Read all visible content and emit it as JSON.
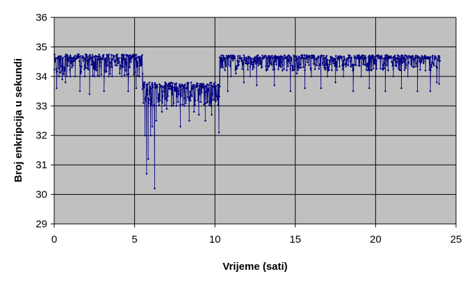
{
  "chart_data": {
    "type": "scatter",
    "title": "",
    "xlabel": "Vrijeme (sati)",
    "ylabel": "Broj enkripcija u sekundi",
    "xlim": [
      0,
      25
    ],
    "ylim": [
      29,
      36
    ],
    "x_ticks": [
      0,
      5,
      10,
      15,
      20,
      25
    ],
    "y_ticks": [
      29,
      30,
      31,
      32,
      33,
      34,
      35,
      36
    ],
    "x_tick_labels": [
      "0",
      "5",
      "10",
      "15",
      "20",
      "25"
    ],
    "y_tick_labels": [
      "29",
      "30",
      "31",
      "32",
      "33",
      "34",
      "35",
      "36"
    ],
    "grid": true,
    "legend": "none",
    "colors": {
      "plot_background": "#c0c0c0",
      "series": "#000080",
      "grid": "#000000"
    },
    "series": [
      {
        "style": "line-with-markers",
        "segments": [
          {
            "x_range": [
              0,
              5.5
            ],
            "typical_range": [
              34.0,
              34.75
            ],
            "baseline": 34.45,
            "dips": [
              [
                0.15,
                33.6
              ],
              [
                0.3,
                34.0
              ],
              [
                0.5,
                33.9
              ],
              [
                0.7,
                33.8
              ],
              [
                1.0,
                34.0
              ],
              [
                1.3,
                34.0
              ],
              [
                1.6,
                33.5
              ],
              [
                1.9,
                34.0
              ],
              [
                2.2,
                33.4
              ],
              [
                2.5,
                34.0
              ],
              [
                2.8,
                34.0
              ],
              [
                3.1,
                33.5
              ],
              [
                3.4,
                34.0
              ],
              [
                3.6,
                34.0
              ],
              [
                4.2,
                34.0
              ],
              [
                4.6,
                33.5
              ],
              [
                5.1,
                33.6
              ],
              [
                5.3,
                34.0
              ]
            ]
          },
          {
            "x_range": [
              5.5,
              10.3
            ],
            "typical_range": [
              33.0,
              33.8
            ],
            "baseline": 33.35,
            "dips": [
              [
                5.55,
                33.1
              ],
              [
                5.65,
                32.0
              ],
              [
                5.75,
                30.7
              ],
              [
                5.85,
                31.2
              ],
              [
                6.0,
                32.0
              ],
              [
                6.1,
                32.3
              ],
              [
                6.25,
                30.2
              ],
              [
                6.35,
                32.5
              ],
              [
                6.7,
                32.8
              ],
              [
                7.0,
                32.9
              ],
              [
                7.3,
                33.0
              ],
              [
                7.6,
                33.0
              ],
              [
                7.85,
                32.3
              ],
              [
                8.1,
                33.0
              ],
              [
                8.4,
                32.5
              ],
              [
                8.7,
                32.8
              ],
              [
                9.0,
                32.7
              ],
              [
                9.4,
                32.5
              ],
              [
                9.8,
                32.7
              ],
              [
                10.25,
                32.1
              ]
            ]
          },
          {
            "x_range": [
              10.3,
              24.0
            ],
            "typical_range": [
              34.2,
              34.72
            ],
            "baseline": 34.6,
            "dips": [
              [
                10.5,
                34.3
              ],
              [
                10.8,
                33.5
              ],
              [
                11.0,
                34.0
              ],
              [
                11.3,
                34.1
              ],
              [
                11.8,
                33.8
              ],
              [
                12.2,
                34.0
              ],
              [
                12.6,
                33.7
              ],
              [
                12.9,
                34.3
              ],
              [
                13.2,
                34.2
              ],
              [
                13.7,
                33.7
              ],
              [
                14.2,
                34.2
              ],
              [
                14.7,
                33.5
              ],
              [
                15.1,
                34.1
              ],
              [
                15.6,
                33.6
              ],
              [
                16.0,
                34.0
              ],
              [
                16.6,
                33.6
              ],
              [
                17.0,
                34.0
              ],
              [
                17.5,
                33.8
              ],
              [
                18.0,
                34.0
              ],
              [
                18.6,
                33.5
              ],
              [
                19.1,
                34.0
              ],
              [
                19.6,
                33.6
              ],
              [
                20.0,
                34.0
              ],
              [
                20.6,
                33.5
              ],
              [
                21.1,
                34.0
              ],
              [
                21.6,
                33.6
              ],
              [
                22.0,
                34.0
              ],
              [
                22.6,
                33.5
              ],
              [
                23.1,
                34.2
              ],
              [
                23.4,
                33.5
              ],
              [
                23.8,
                33.8
              ],
              [
                23.95,
                33.75
              ]
            ]
          }
        ]
      }
    ]
  }
}
